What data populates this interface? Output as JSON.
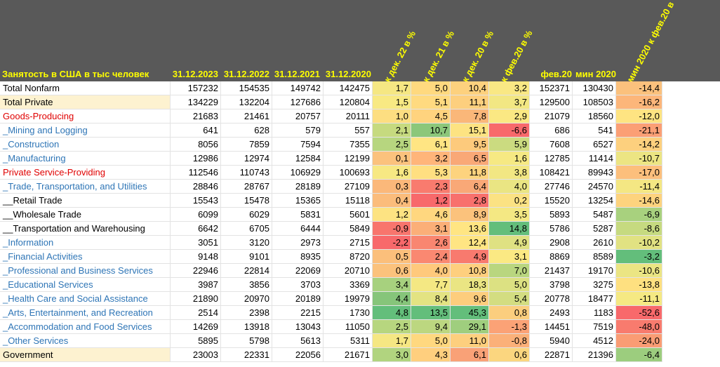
{
  "header": {
    "title": "Занятость в США в тыс человек",
    "columns": [
      "31.12.2023",
      "31.12.2022",
      "31.12.2021",
      "31.12.2020",
      "к дек. 22 в %",
      "к дек. 21 в %",
      "к дек. 20 в %",
      "к фев.20 в %",
      "фев.20",
      "мин 2020",
      "мин 2020 к фев.20 в %"
    ]
  },
  "colors": {
    "header_background": "#595959",
    "header_text": "#ffff00",
    "label_red": "#e00000",
    "label_blue": "#2e75b6",
    "label_highlight": "#fdf2d0"
  },
  "rows": [
    {
      "label": "Total Nonfarm",
      "style": "black",
      "values": [
        "157232",
        "154535",
        "149742",
        "142475",
        "1,7",
        "5,0",
        "10,4",
        "3,2",
        "152371",
        "130430",
        "-14,4"
      ],
      "colors": [
        "#f5e783",
        "#ffd97f",
        "#fdd17e",
        "#f9e884",
        "",
        "",
        "",
        "",
        "",
        "",
        "#fbc17d"
      ]
    },
    {
      "label": "Total Private",
      "style": "tan",
      "values": [
        "134229",
        "132204",
        "127686",
        "120804",
        "1,5",
        "5,1",
        "11,1",
        "3,7",
        "129500",
        "108503",
        "-16,2"
      ],
      "colors": [
        "#f8e983",
        "#ffda80",
        "#fdcf7e",
        "#f2e783",
        "",
        "",
        "",
        "",
        "",
        "",
        "#fcb67a"
      ]
    },
    {
      "label": "Goods-Producing",
      "style": "red",
      "values": [
        "21683",
        "21461",
        "20757",
        "20111",
        "1,0",
        "4,5",
        "7,8",
        "2,9",
        "21079",
        "18560",
        "-12,0"
      ],
      "colors": [
        "#fdde81",
        "#ffd37e",
        "#fab779",
        "#fbe883",
        "",
        "",
        "",
        "",
        "",
        "",
        "#fee482"
      ]
    },
    {
      "label": "_Mining and Logging",
      "style": "blue",
      "values": [
        "641",
        "628",
        "579",
        "557",
        "2,1",
        "10,7",
        "15,1",
        "-6,6",
        "686",
        "541",
        "-21,1"
      ],
      "colors": [
        "#c6da7f",
        "#8cc77a",
        "#fde382",
        "#f8696b",
        "",
        "",
        "",
        "",
        "",
        "",
        "#fb9f75"
      ]
    },
    {
      "label": "_Construction",
      "style": "blue",
      "values": [
        "8056",
        "7859",
        "7594",
        "7355",
        "2,5",
        "6,1",
        "9,5",
        "5,9",
        "7608",
        "6527",
        "-14,2"
      ],
      "colors": [
        "#b7d67f",
        "#ffe583",
        "#fdca7c",
        "#cbdb80",
        "",
        "",
        "",
        "",
        "",
        "",
        "#fdd07e"
      ]
    },
    {
      "label": "_Manufacturing",
      "style": "blue",
      "values": [
        "12986",
        "12974",
        "12584",
        "12199",
        "0,1",
        "3,2",
        "6,5",
        "1,6",
        "12785",
        "11414",
        "-10,7"
      ],
      "colors": [
        "#fbc27d",
        "#ffb57a",
        "#f9a877",
        "#f6e983",
        "",
        "",
        "",
        "",
        "",
        "",
        "#ece583"
      ]
    },
    {
      "label": "Private Service-Providing",
      "style": "red",
      "values": [
        "112546",
        "110743",
        "106929",
        "100693",
        "1,6",
        "5,3",
        "11,8",
        "3,8",
        "108421",
        "89943",
        "-17,0"
      ],
      "colors": [
        "#f7e883",
        "#ffdf81",
        "#fdd37e",
        "#f2e783",
        "",
        "",
        "",
        "",
        "",
        "",
        "#fcbf7c"
      ]
    },
    {
      "label": "_Trade, Transportation, and Utilities",
      "style": "blue",
      "values": [
        "28846",
        "28767",
        "28189",
        "27109",
        "0,3",
        "2,3",
        "6,4",
        "4,0",
        "27746",
        "24570",
        "-11,4"
      ],
      "colors": [
        "#fbb87a",
        "#f97b6e",
        "#f9a877",
        "#eae583",
        "",
        "",
        "",
        "",
        "",
        "",
        "#f4e783"
      ]
    },
    {
      "label": "__Retail Trade",
      "style": "black",
      "values": [
        "15543",
        "15478",
        "15365",
        "15118",
        "0,4",
        "1,2",
        "2,8",
        "0,2",
        "15520",
        "13254",
        "-14,6"
      ],
      "colors": [
        "#fbbc7b",
        "#f8696b",
        "#f8706d",
        "#fbe283",
        "",
        "",
        "",
        "",
        "",
        "",
        "#fdd37e"
      ]
    },
    {
      "label": "__Wholesale Trade",
      "style": "black",
      "values": [
        "6099",
        "6029",
        "5831",
        "5601",
        "1,2",
        "4,6",
        "8,9",
        "3,5",
        "5893",
        "5487",
        "-6,9"
      ],
      "colors": [
        "#fde382",
        "#ffd77f",
        "#fbc27c",
        "#f4e883",
        "",
        "",
        "",
        "",
        "",
        "",
        "#a8d17e"
      ]
    },
    {
      "label": "__Transportation and Warehousing",
      "style": "black",
      "values": [
        "6642",
        "6705",
        "6444",
        "5849",
        "-0,9",
        "3,1",
        "13,6",
        "14,8",
        "5786",
        "5287",
        "-8,6"
      ],
      "colors": [
        "#f8756d",
        "#fbaf78",
        "#ffe583",
        "#63be7b",
        "",
        "",
        "",
        "",
        "",
        "",
        "#c6da80"
      ]
    },
    {
      "label": "_Information",
      "style": "blue",
      "values": [
        "3051",
        "3120",
        "2973",
        "2715",
        "-2,2",
        "2,6",
        "12,4",
        "4,9",
        "2908",
        "2610",
        "-10,2"
      ],
      "colors": [
        "#f8696b",
        "#f98670",
        "#ffe583",
        "#dfe182",
        "",
        "",
        "",
        "",
        "",
        "",
        "#e1e282"
      ]
    },
    {
      "label": "_Financial Activities",
      "style": "blue",
      "values": [
        "9148",
        "9101",
        "8935",
        "8720",
        "0,5",
        "2,4",
        "4,9",
        "3,1",
        "8869",
        "8589",
        "-3,2"
      ],
      "colors": [
        "#fbbf7b",
        "#fa8871",
        "#f87a6e",
        "#fbe983",
        "",
        "",
        "",
        "",
        "",
        "",
        "#63be7b"
      ]
    },
    {
      "label": "_Professional and Business Services",
      "style": "blue",
      "values": [
        "22946",
        "22814",
        "22069",
        "20710",
        "0,6",
        "4,0",
        "10,8",
        "7,0",
        "21437",
        "19170",
        "-10,6"
      ],
      "colors": [
        "#fbc27c",
        "#ffc97c",
        "#fecf7e",
        "#b9d67f",
        "",
        "",
        "",
        "",
        "",
        "",
        "#ebe583"
      ]
    },
    {
      "label": "_Educational Services",
      "style": "blue",
      "values": [
        "3987",
        "3856",
        "3703",
        "3369",
        "3,4",
        "7,7",
        "18,3",
        "5,0",
        "3798",
        "3275",
        "-13,8"
      ],
      "colors": [
        "#a7d17e",
        "#f4e883",
        "#eae583",
        "#dce182",
        "",
        "",
        "",
        "",
        "",
        "",
        "#fee080"
      ]
    },
    {
      "label": "_Health Care and Social Assistance",
      "style": "blue",
      "values": [
        "21890",
        "20970",
        "20189",
        "19979",
        "4,4",
        "8,4",
        "9,6",
        "5,4",
        "20778",
        "18477",
        "-11,1"
      ],
      "colors": [
        "#86c57a",
        "#e3e382",
        "#fdcd7d",
        "#d3dd81",
        "",
        "",
        "",
        "",
        "",
        "",
        "#f5e983"
      ]
    },
    {
      "label": "_Arts, Entertainment, and Recreation",
      "style": "blue",
      "values": [
        "2514",
        "2398",
        "2215",
        "1730",
        "4,8",
        "13,5",
        "45,3",
        "0,8",
        "2493",
        "1183",
        "-52,6"
      ],
      "colors": [
        "#63be7b",
        "#63be7b",
        "#63be7b",
        "#fbce7e",
        "",
        "",
        "",
        "",
        "",
        "",
        "#f8696b"
      ]
    },
    {
      "label": "_Accommodation and Food Services",
      "style": "blue",
      "values": [
        "14269",
        "13918",
        "13043",
        "11050",
        "2,5",
        "9,4",
        "29,1",
        "-1,3",
        "14451",
        "7519",
        "-48,0"
      ],
      "colors": [
        "#b7d67f",
        "#bcd780",
        "#9fce7e",
        "#fba276",
        "",
        "",
        "",
        "",
        "",
        "",
        "#f87b6e"
      ]
    },
    {
      "label": "_Other Services",
      "style": "blue",
      "values": [
        "5895",
        "5798",
        "5613",
        "5311",
        "1,7",
        "5,0",
        "11,0",
        "-0,8",
        "5940",
        "4512",
        "-24,0"
      ],
      "colors": [
        "#f5e783",
        "#ffd87f",
        "#fdcf7e",
        "#fbb079",
        "",
        "",
        "",
        "",
        "",
        "",
        "#fa9c74"
      ]
    },
    {
      "label": "Government",
      "style": "tan",
      "values": [
        "23003",
        "22331",
        "22056",
        "21671",
        "3,0",
        "4,3",
        "6,1",
        "0,6",
        "22871",
        "21396",
        "-6,4"
      ],
      "colors": [
        "#b1d47f",
        "#ffcf7e",
        "#f9a177",
        "#fbd67f",
        "",
        "",
        "",
        "",
        "",
        "",
        "#9ccd7e"
      ]
    }
  ]
}
